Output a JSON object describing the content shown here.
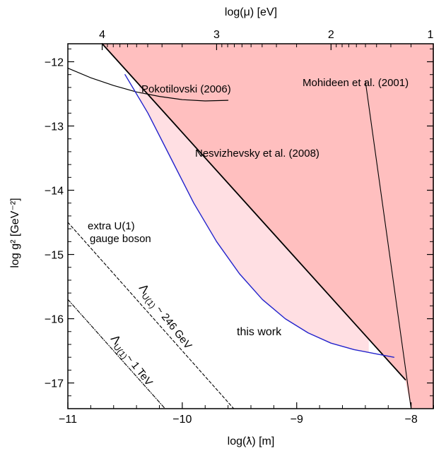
{
  "chart_data": {
    "type": "line",
    "xlabel": "log(ƛ) [m]",
    "ylabel": "log g² [GeV⁻²]",
    "top_xlabel": "log(μ) [eV]",
    "xlim": [
      -11,
      -7.8
    ],
    "ylim": [
      -17.4,
      -11.72
    ],
    "x_ticks": [
      -11,
      -10,
      -9,
      -8
    ],
    "x_tick_labels": [
      "−11",
      "−10",
      "−9",
      "−8"
    ],
    "y_ticks": [
      -12,
      -13,
      -14,
      -15,
      -16,
      -17
    ],
    "y_tick_labels": [
      "−12",
      "−13",
      "−14",
      "−15",
      "−16",
      "−17"
    ],
    "top_ticks": [
      {
        "x": -10.7,
        "label": "4"
      },
      {
        "x": -9.7,
        "label": "3"
      },
      {
        "x": -8.7,
        "label": "2"
      },
      {
        "x": -7.7,
        "label": "1"
      }
    ],
    "grid": false,
    "colors": {
      "excluded": "#ffbfbf",
      "this_work_region": "#ffdfe3",
      "this_work_line": "#2222cc",
      "other_lines": "#000000"
    },
    "series": [
      {
        "name": "Pokotilovski (2006)",
        "points": [
          [
            -11.0,
            -12.1
          ],
          [
            -10.8,
            -12.25
          ],
          [
            -10.6,
            -12.37
          ],
          [
            -10.4,
            -12.47
          ],
          [
            -10.2,
            -12.54
          ],
          [
            -10.0,
            -12.59
          ],
          [
            -9.8,
            -12.61
          ],
          [
            -9.6,
            -12.6
          ]
        ]
      },
      {
        "name": "Nesvizhevsky et al. (2008)",
        "points": [
          [
            -10.7,
            -11.72
          ],
          [
            -8.05,
            -16.95
          ]
        ]
      },
      {
        "name": "Mohideen et al. (2001)",
        "points": [
          [
            -8.4,
            -12.3
          ],
          [
            -8.0,
            -17.4
          ]
        ]
      },
      {
        "name": "this work",
        "points": [
          [
            -10.5,
            -12.2
          ],
          [
            -10.3,
            -12.8
          ],
          [
            -10.1,
            -13.5
          ],
          [
            -9.9,
            -14.2
          ],
          [
            -9.7,
            -14.8
          ],
          [
            -9.5,
            -15.3
          ],
          [
            -9.3,
            -15.7
          ],
          [
            -9.1,
            -16.0
          ],
          [
            -8.9,
            -16.22
          ],
          [
            -8.7,
            -16.38
          ],
          [
            -8.5,
            -16.48
          ],
          [
            -8.3,
            -16.55
          ],
          [
            -8.15,
            -16.6
          ]
        ]
      },
      {
        "name": "Λ_U(1) ~ 246 GeV",
        "points": [
          [
            -11.0,
            -14.5
          ],
          [
            -9.55,
            -17.4
          ]
        ]
      },
      {
        "name": "Λ_U(1) ~ 1 TeV",
        "points": [
          [
            -11.0,
            -15.7
          ],
          [
            -10.15,
            -17.4
          ]
        ]
      }
    ],
    "excluded_boundary": [
      [
        -10.7,
        -11.72
      ],
      [
        -8.05,
        -16.95
      ],
      [
        -8.0,
        -17.4
      ],
      [
        -7.8,
        -17.4
      ],
      [
        -7.8,
        -11.72
      ]
    ],
    "annotations": [
      {
        "id": "pokotilovski",
        "text": "Pokotilovski (2006)"
      },
      {
        "id": "nesvizhevsky",
        "text": "Nesvizhevsky et al. (2008)"
      },
      {
        "id": "mohideen",
        "text": "Mohideen et al. (2001)"
      },
      {
        "id": "thiswork",
        "text": "this work"
      },
      {
        "id": "extra1",
        "text": "extra U(1)"
      },
      {
        "id": "extra2",
        "text": "gauge boson"
      }
    ],
    "lambda_labels": [
      {
        "id": "lam246",
        "main": "Λ",
        "sub": "U(1)",
        "rest": " ~ 246 GeV"
      },
      {
        "id": "lam1tev",
        "main": "Λ",
        "sub": "U(1)",
        "rest": "~ 1 TeV"
      }
    ]
  }
}
